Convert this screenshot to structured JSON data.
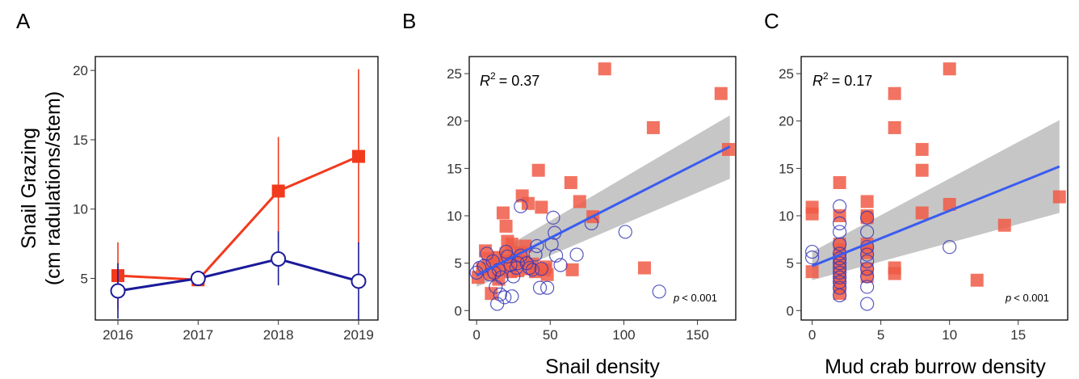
{
  "chart_data": [
    {
      "panel": "A",
      "type": "line",
      "ylabel_line1": "Snail Grazing",
      "ylabel_line2": "(cm radulations/stem)",
      "xlabel": "",
      "categories": [
        "2016",
        "2017",
        "2018",
        "2019"
      ],
      "ylim": [
        2,
        21
      ],
      "yticks": [
        5,
        10,
        15,
        20
      ],
      "series": [
        {
          "color": "#f23a1d",
          "marker": "square",
          "values": [
            5.2,
            4.9,
            11.3,
            13.8
          ],
          "err_low": [
            2.8,
            4.6,
            7.6,
            7.5
          ],
          "err_high": [
            7.6,
            5.2,
            15.2,
            20.1
          ]
        },
        {
          "color": "#1a1a9a",
          "marker": "circle-open",
          "values": [
            4.1,
            5.0,
            6.4,
            4.8
          ],
          "err_low": [
            2.1,
            4.8,
            4.5,
            2.0
          ],
          "err_high": [
            6.1,
            5.2,
            8.4,
            7.6
          ]
        }
      ]
    },
    {
      "panel": "B",
      "type": "scatter",
      "xlabel": "Snail density",
      "ylabel": "",
      "xlim": [
        -5,
        176
      ],
      "ylim": [
        -1,
        26.8
      ],
      "xticks": [
        0,
        50,
        100,
        150
      ],
      "yticks": [
        0,
        5,
        10,
        15,
        20,
        25
      ],
      "r2_label": "R",
      "r2_value": "= 0.37",
      "p_label": "p",
      "p_value": "< 0.001",
      "fit": {
        "x": [
          0,
          172
        ],
        "y": [
          3.7,
          17.3
        ],
        "ci_low": [
          2.5,
          13.9
        ],
        "ci_high": [
          4.9,
          20.6
        ]
      },
      "series": [
        {
          "color": "#f05a45",
          "marker": "square",
          "points": [
            [
              1,
              3.5
            ],
            [
              4,
              4.4
            ],
            [
              6,
              6.3
            ],
            [
              8,
              5.5
            ],
            [
              10,
              3.9
            ],
            [
              10,
              1.8
            ],
            [
              13,
              5.0
            ],
            [
              14,
              5.6
            ],
            [
              15,
              3.3
            ],
            [
              17,
              4.4
            ],
            [
              18,
              10.3
            ],
            [
              20,
              8.9
            ],
            [
              20,
              6.0
            ],
            [
              21,
              7.3
            ],
            [
              22,
              5.2
            ],
            [
              23,
              4.1
            ],
            [
              24,
              7.0
            ],
            [
              26,
              5.6
            ],
            [
              28,
              4.2
            ],
            [
              30,
              6.1
            ],
            [
              31,
              12.1
            ],
            [
              32,
              5.2
            ],
            [
              33,
              6.8
            ],
            [
              35,
              11.3
            ],
            [
              36,
              4.4
            ],
            [
              38,
              4.9
            ],
            [
              40,
              4.1
            ],
            [
              42,
              14.8
            ],
            [
              44,
              10.9
            ],
            [
              46,
              4.3
            ],
            [
              47,
              4.6
            ],
            [
              48,
              3.8
            ],
            [
              64,
              13.5
            ],
            [
              65,
              4.3
            ],
            [
              70,
              11.5
            ],
            [
              79,
              9.9
            ],
            [
              87,
              25.5
            ],
            [
              114,
              4.5
            ],
            [
              120,
              19.3
            ],
            [
              166,
              22.9
            ],
            [
              171,
              17.0
            ]
          ]
        },
        {
          "color": "#3a3ab8",
          "marker": "circle-open",
          "points": [
            [
              0,
              4.0
            ],
            [
              2,
              4.5
            ],
            [
              5,
              4.7
            ],
            [
              7,
              6.0
            ],
            [
              9,
              3.8
            ],
            [
              11,
              5.2
            ],
            [
              12,
              4.0
            ],
            [
              13,
              2.5
            ],
            [
              14,
              0.7
            ],
            [
              15,
              4.3
            ],
            [
              16,
              1.7
            ],
            [
              17,
              3.5
            ],
            [
              19,
              1.4
            ],
            [
              20,
              6.2
            ],
            [
              21,
              5.7
            ],
            [
              23,
              4.8
            ],
            [
              24,
              1.5
            ],
            [
              25,
              3.6
            ],
            [
              27,
              4.5
            ],
            [
              28,
              5.0
            ],
            [
              30,
              5.8
            ],
            [
              30,
              11.0
            ],
            [
              34,
              5.0
            ],
            [
              36,
              4.5
            ],
            [
              38,
              4.3
            ],
            [
              40,
              5.9
            ],
            [
              41,
              6.8
            ],
            [
              43,
              2.4
            ],
            [
              44,
              4.4
            ],
            [
              48,
              2.4
            ],
            [
              51,
              7.0
            ],
            [
              52,
              9.8
            ],
            [
              53,
              8.2
            ],
            [
              54,
              5.8
            ],
            [
              57,
              4.8
            ],
            [
              68,
              5.9
            ],
            [
              78,
              9.2
            ],
            [
              101,
              8.3
            ],
            [
              124,
              2.0
            ]
          ]
        }
      ]
    },
    {
      "panel": "C",
      "type": "scatter",
      "xlabel": "Mud crab burrow density",
      "ylabel": "",
      "xlim": [
        -0.8,
        18.6
      ],
      "ylim": [
        -1,
        26.8
      ],
      "xticks": [
        0,
        5,
        10,
        15
      ],
      "yticks": [
        0,
        5,
        10,
        15,
        20,
        25
      ],
      "r2_label": "R",
      "r2_value": "= 0.17",
      "p_label": "p",
      "p_value": "< 0.001",
      "fit": {
        "x": [
          0,
          18
        ],
        "y": [
          4.7,
          15.2
        ],
        "ci_low": [
          3.2,
          10.3
        ],
        "ci_high": [
          6.2,
          20.1
        ]
      },
      "series": [
        {
          "color": "#f05a45",
          "marker": "square",
          "points": [
            [
              0,
              4.1
            ],
            [
              0,
              10.2
            ],
            [
              0,
              10.9
            ],
            [
              2,
              13.5
            ],
            [
              2,
              10.0
            ],
            [
              2,
              7.0
            ],
            [
              2,
              6.4
            ],
            [
              2,
              5.5
            ],
            [
              2,
              4.8
            ],
            [
              2,
              4.1
            ],
            [
              2,
              3.7
            ],
            [
              2,
              3.2
            ],
            [
              2,
              2.5
            ],
            [
              2,
              1.8
            ],
            [
              4,
              11.5
            ],
            [
              4,
              10.0
            ],
            [
              4,
              9.8
            ],
            [
              4,
              7.0
            ],
            [
              4,
              6.1
            ],
            [
              4,
              4.4
            ],
            [
              4,
              3.6
            ],
            [
              6,
              22.9
            ],
            [
              6,
              19.3
            ],
            [
              6,
              4.5
            ],
            [
              6,
              3.9
            ],
            [
              8,
              17.0
            ],
            [
              8,
              14.8
            ],
            [
              8,
              10.3
            ],
            [
              10,
              25.5
            ],
            [
              10,
              11.2
            ],
            [
              12,
              3.2
            ],
            [
              14,
              9.0
            ],
            [
              18,
              12.0
            ]
          ]
        },
        {
          "color": "#3a3ab8",
          "marker": "circle-open",
          "points": [
            [
              0,
              6.2
            ],
            [
              0,
              5.6
            ],
            [
              2,
              11.0
            ],
            [
              2,
              9.2
            ],
            [
              2,
              8.3
            ],
            [
              2,
              7.0
            ],
            [
              2,
              6.0
            ],
            [
              2,
              5.5
            ],
            [
              2,
              5.0
            ],
            [
              2,
              4.5
            ],
            [
              2,
              4.0
            ],
            [
              2,
              3.5
            ],
            [
              2,
              3.0
            ],
            [
              2,
              2.4
            ],
            [
              2,
              1.6
            ],
            [
              4,
              9.8
            ],
            [
              4,
              8.3
            ],
            [
              4,
              6.7
            ],
            [
              4,
              5.9
            ],
            [
              4,
              5.2
            ],
            [
              4,
              4.4
            ],
            [
              4,
              3.6
            ],
            [
              4,
              2.5
            ],
            [
              4,
              0.7
            ],
            [
              10,
              6.7
            ]
          ]
        }
      ]
    }
  ]
}
